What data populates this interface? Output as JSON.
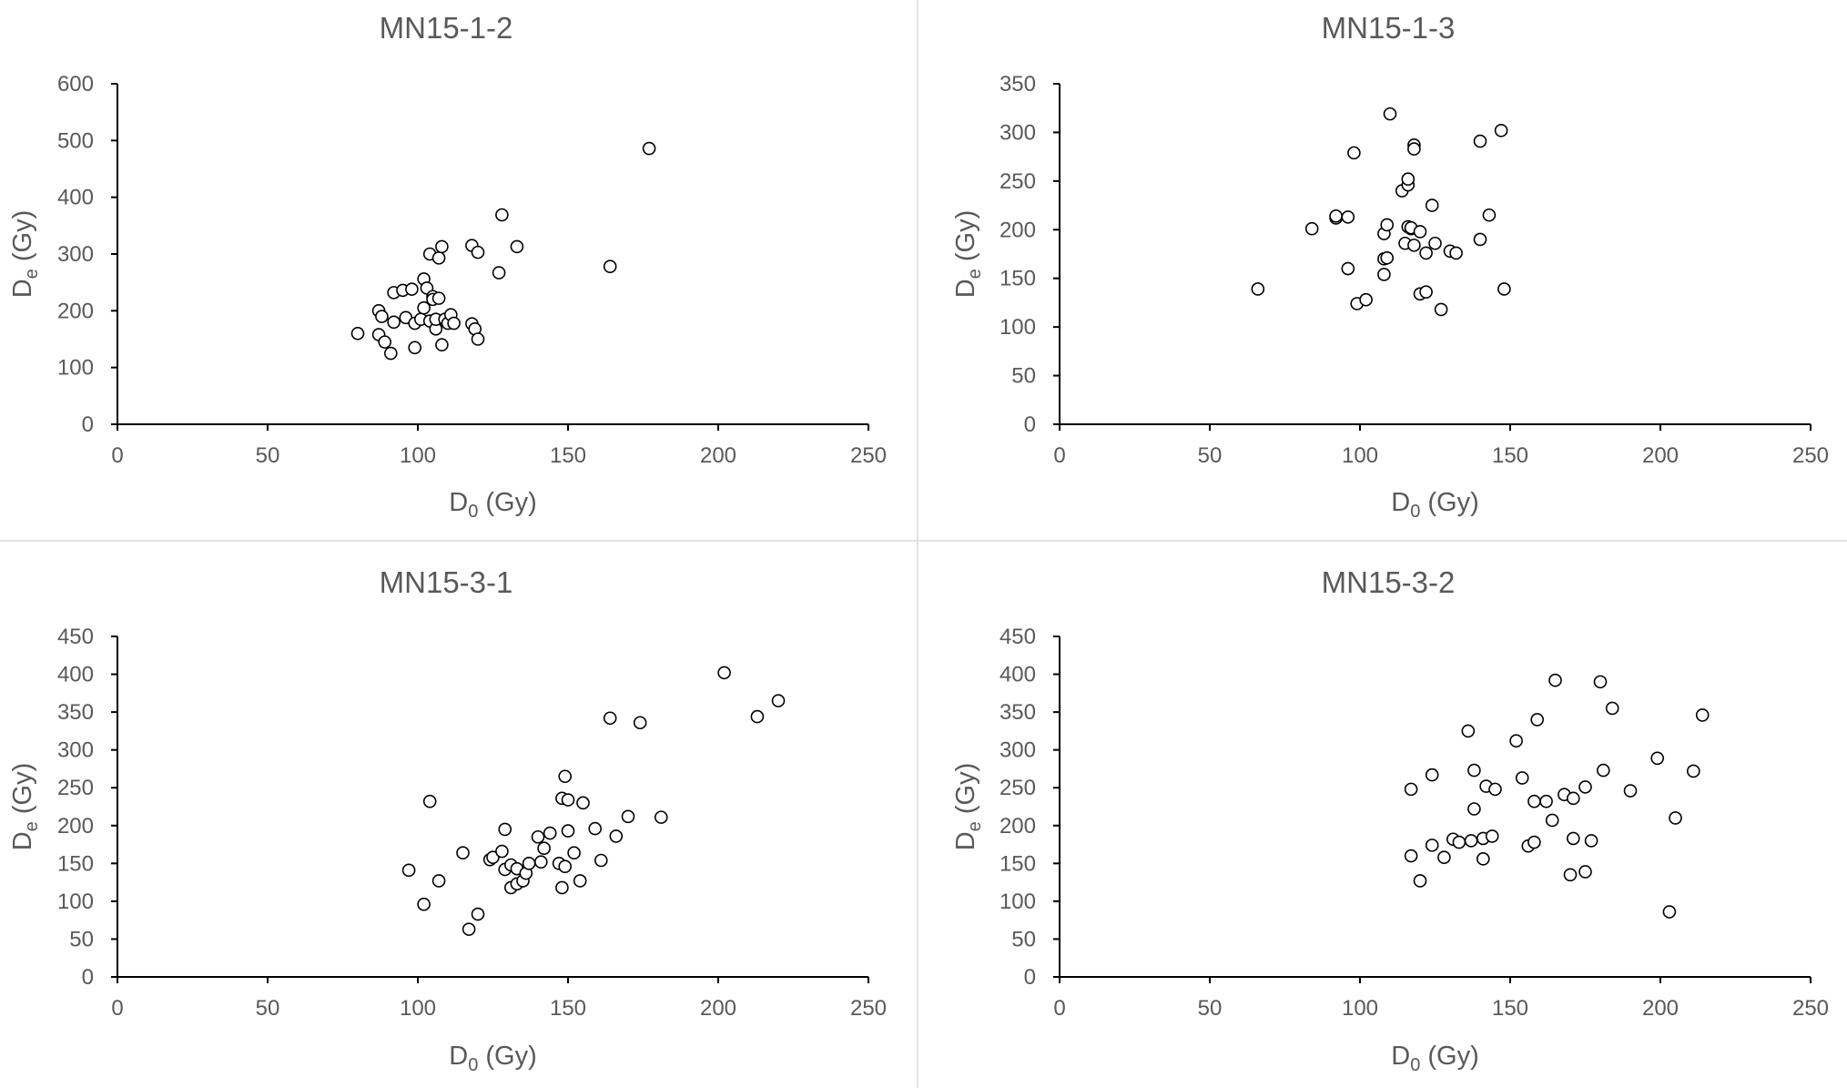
{
  "chart_data": [
    {
      "type": "scatter",
      "title": "MN15-1-2",
      "xlabel": {
        "main": "D",
        "sub": "0",
        "unit": " (Gy)"
      },
      "ylabel": {
        "main": "D",
        "sub": "e",
        "unit": " (Gy)"
      },
      "xlim": [
        0,
        250
      ],
      "ylim": [
        0,
        600
      ],
      "xticks": [
        "0",
        "50",
        "100",
        "150",
        "200",
        "250"
      ],
      "yticks": [
        "0",
        "100",
        "200",
        "300",
        "400",
        "500",
        "600"
      ],
      "grid": false,
      "points": [
        [
          80,
          160
        ],
        [
          87,
          200
        ],
        [
          87,
          158
        ],
        [
          88,
          190
        ],
        [
          89,
          145
        ],
        [
          91,
          125
        ],
        [
          92,
          180
        ],
        [
          92,
          232
        ],
        [
          95,
          236
        ],
        [
          96,
          188
        ],
        [
          98,
          238
        ],
        [
          99,
          178
        ],
        [
          99,
          135
        ],
        [
          101,
          185
        ],
        [
          102,
          256
        ],
        [
          102,
          205
        ],
        [
          103,
          240
        ],
        [
          104,
          182
        ],
        [
          104,
          300
        ],
        [
          105,
          225
        ],
        [
          105,
          220
        ],
        [
          106,
          168
        ],
        [
          106,
          185
        ],
        [
          107,
          222
        ],
        [
          107,
          293
        ],
        [
          108,
          140
        ],
        [
          108,
          313
        ],
        [
          109,
          185
        ],
        [
          110,
          178
        ],
        [
          111,
          193
        ],
        [
          112,
          178
        ],
        [
          118,
          315
        ],
        [
          118,
          177
        ],
        [
          119,
          168
        ],
        [
          120,
          303
        ],
        [
          120,
          150
        ],
        [
          127,
          267
        ],
        [
          128,
          369
        ],
        [
          133,
          313
        ],
        [
          164,
          278
        ],
        [
          177,
          486
        ]
      ]
    },
    {
      "type": "scatter",
      "title": "MN15-1-3",
      "xlabel": {
        "main": "D",
        "sub": "0",
        "unit": " (Gy)"
      },
      "ylabel": {
        "main": "D",
        "sub": "e",
        "unit": " (Gy)"
      },
      "xlim": [
        0,
        250
      ],
      "ylim": [
        0,
        350
      ],
      "xticks": [
        "0",
        "50",
        "100",
        "150",
        "200",
        "250"
      ],
      "yticks": [
        "0",
        "50",
        "100",
        "150",
        "200",
        "250",
        "300",
        "350"
      ],
      "grid": false,
      "points": [
        [
          66,
          139
        ],
        [
          84,
          201
        ],
        [
          92,
          212
        ],
        [
          92,
          214
        ],
        [
          96,
          160
        ],
        [
          96,
          213
        ],
        [
          98,
          279
        ],
        [
          99,
          124
        ],
        [
          102,
          128
        ],
        [
          108,
          154
        ],
        [
          108,
          196
        ],
        [
          108,
          170
        ],
        [
          109,
          171
        ],
        [
          109,
          205
        ],
        [
          110,
          319
        ],
        [
          114,
          240
        ],
        [
          115,
          186
        ],
        [
          116,
          246
        ],
        [
          116,
          252
        ],
        [
          116,
          203
        ],
        [
          117,
          201
        ],
        [
          117,
          202
        ],
        [
          118,
          287
        ],
        [
          118,
          283
        ],
        [
          118,
          184
        ],
        [
          120,
          198
        ],
        [
          120,
          134
        ],
        [
          122,
          176
        ],
        [
          122,
          136
        ],
        [
          124,
          225
        ],
        [
          125,
          186
        ],
        [
          127,
          118
        ],
        [
          130,
          178
        ],
        [
          132,
          176
        ],
        [
          140,
          291
        ],
        [
          140,
          190
        ],
        [
          143,
          215
        ],
        [
          147,
          302
        ],
        [
          148,
          139
        ]
      ]
    },
    {
      "type": "scatter",
      "title": "MN15-3-1",
      "xlabel": {
        "main": "D",
        "sub": "0",
        "unit": " (Gy)"
      },
      "ylabel": {
        "main": "D",
        "sub": "e",
        "unit": " (Gy)"
      },
      "xlim": [
        0,
        250
      ],
      "ylim": [
        0,
        450
      ],
      "xticks": [
        "0",
        "50",
        "100",
        "150",
        "200",
        "250"
      ],
      "yticks": [
        "0",
        "50",
        "100",
        "150",
        "200",
        "250",
        "300",
        "350",
        "400",
        "450"
      ],
      "grid": false,
      "points": [
        [
          97,
          141
        ],
        [
          102,
          96
        ],
        [
          104,
          232
        ],
        [
          107,
          127
        ],
        [
          115,
          164
        ],
        [
          117,
          63
        ],
        [
          120,
          83
        ],
        [
          124,
          155
        ],
        [
          125,
          158
        ],
        [
          128,
          166
        ],
        [
          129,
          195
        ],
        [
          129,
          142
        ],
        [
          131,
          148
        ],
        [
          131,
          118
        ],
        [
          133,
          123
        ],
        [
          133,
          143
        ],
        [
          135,
          127
        ],
        [
          136,
          137
        ],
        [
          137,
          150
        ],
        [
          140,
          185
        ],
        [
          141,
          152
        ],
        [
          142,
          170
        ],
        [
          144,
          190
        ],
        [
          147,
          150
        ],
        [
          148,
          236
        ],
        [
          148,
          118
        ],
        [
          149,
          265
        ],
        [
          149,
          146
        ],
        [
          150,
          234
        ],
        [
          150,
          193
        ],
        [
          152,
          164
        ],
        [
          154,
          127
        ],
        [
          155,
          230
        ],
        [
          159,
          196
        ],
        [
          161,
          154
        ],
        [
          164,
          342
        ],
        [
          166,
          186
        ],
        [
          170,
          212
        ],
        [
          174,
          336
        ],
        [
          181,
          211
        ],
        [
          202,
          402
        ],
        [
          213,
          344
        ],
        [
          220,
          365
        ]
      ]
    },
    {
      "type": "scatter",
      "title": "MN15-3-2",
      "xlabel": {
        "main": "D",
        "sub": "0",
        "unit": " (Gy)"
      },
      "ylabel": {
        "main": "D",
        "sub": "e",
        "unit": " (Gy)"
      },
      "xlim": [
        0,
        250
      ],
      "ylim": [
        0,
        450
      ],
      "xticks": [
        "0",
        "50",
        "100",
        "150",
        "200",
        "250"
      ],
      "yticks": [
        "0",
        "50",
        "100",
        "150",
        "200",
        "250",
        "300",
        "350",
        "400",
        "450"
      ],
      "grid": false,
      "points": [
        [
          117,
          160
        ],
        [
          117,
          248
        ],
        [
          120,
          127
        ],
        [
          124,
          174
        ],
        [
          124,
          267
        ],
        [
          128,
          158
        ],
        [
          131,
          182
        ],
        [
          133,
          178
        ],
        [
          136,
          325
        ],
        [
          137,
          180
        ],
        [
          138,
          273
        ],
        [
          138,
          222
        ],
        [
          141,
          183
        ],
        [
          141,
          156
        ],
        [
          142,
          252
        ],
        [
          144,
          186
        ],
        [
          145,
          248
        ],
        [
          152,
          312
        ],
        [
          154,
          263
        ],
        [
          156,
          173
        ],
        [
          158,
          232
        ],
        [
          158,
          178
        ],
        [
          159,
          340
        ],
        [
          162,
          232
        ],
        [
          164,
          207
        ],
        [
          165,
          392
        ],
        [
          168,
          241
        ],
        [
          170,
          135
        ],
        [
          171,
          183
        ],
        [
          171,
          236
        ],
        [
          175,
          139
        ],
        [
          175,
          251
        ],
        [
          177,
          180
        ],
        [
          180,
          390
        ],
        [
          181,
          273
        ],
        [
          184,
          355
        ],
        [
          190,
          246
        ],
        [
          199,
          289
        ],
        [
          203,
          86
        ],
        [
          205,
          210
        ],
        [
          211,
          272
        ],
        [
          214,
          346
        ]
      ]
    }
  ]
}
